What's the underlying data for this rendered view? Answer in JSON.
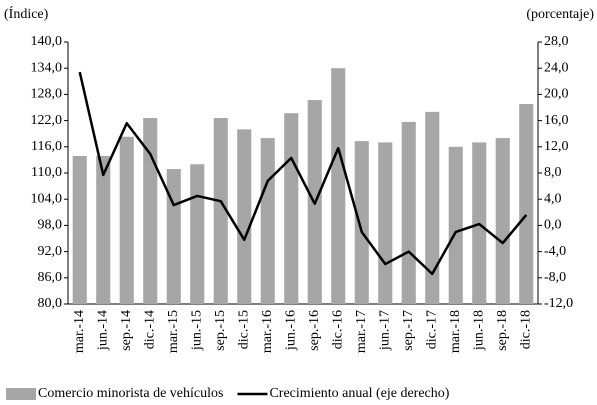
{
  "chart_data": {
    "type": "bar",
    "y_label": "(Índice)",
    "y2_label": "(porcentaje)",
    "categories": [
      "mar.-14",
      "jun.-14",
      "sep.-14",
      "dic.-14",
      "mar.-15",
      "jun.-15",
      "sep.-15",
      "dic.-15",
      "mar.-16",
      "jun.-16",
      "sep.-16",
      "dic.-16",
      "mar.-17",
      "jun.-17",
      "sep.-17",
      "dic.-17",
      "mar.-18",
      "jun.-18",
      "sep.-18",
      "dic.-18"
    ],
    "series": [
      {
        "name": "Comercio minorista de vehículos",
        "type": "bar",
        "color": "#a6a6a6",
        "values": [
          113.9,
          113.9,
          118.3,
          122.6,
          110.9,
          112.0,
          122.6,
          120.0,
          118.0,
          123.7,
          126.7,
          134.0,
          117.3,
          117.0,
          121.7,
          124.0,
          116.0,
          117.0,
          118.0,
          125.8
        ]
      },
      {
        "name": "Crecimiento anual (eje derecho)",
        "type": "line",
        "axis": "y2",
        "color": "#000000",
        "values": [
          23.4,
          7.7,
          15.6,
          10.9,
          3.1,
          4.5,
          3.7,
          -2.2,
          6.8,
          10.3,
          3.3,
          11.8,
          -1.0,
          -5.9,
          -4.0,
          -7.4,
          -1.0,
          0.2,
          -2.7,
          1.6
        ]
      }
    ],
    "ylim": [
      80,
      140
    ],
    "yticks": [
      {
        "value": 80,
        "label": "80,0"
      },
      {
        "value": 86,
        "label": "86,0"
      },
      {
        "value": 92,
        "label": "92,0"
      },
      {
        "value": 98,
        "label": "98,0"
      },
      {
        "value": 104,
        "label": "104,0"
      },
      {
        "value": 110,
        "label": "110,0"
      },
      {
        "value": 116,
        "label": "116,0"
      },
      {
        "value": 122,
        "label": "122,0"
      },
      {
        "value": 128,
        "label": "128,0"
      },
      {
        "value": 134,
        "label": "134,0"
      },
      {
        "value": 140,
        "label": "140,0"
      }
    ],
    "y2lim": [
      -12,
      28
    ],
    "y2ticks": [
      {
        "value": -12,
        "label": "-12,0"
      },
      {
        "value": -8,
        "label": "-8,0"
      },
      {
        "value": -4,
        "label": "-4,0"
      },
      {
        "value": 0,
        "label": "0,0"
      },
      {
        "value": 4,
        "label": "4,0"
      },
      {
        "value": 8,
        "label": "8,0"
      },
      {
        "value": 12,
        "label": "12,0"
      },
      {
        "value": 16,
        "label": "16,0"
      },
      {
        "value": 20,
        "label": "20,0"
      },
      {
        "value": 24,
        "label": "24,0"
      },
      {
        "value": 28,
        "label": "28,0"
      }
    ],
    "grid": false
  }
}
